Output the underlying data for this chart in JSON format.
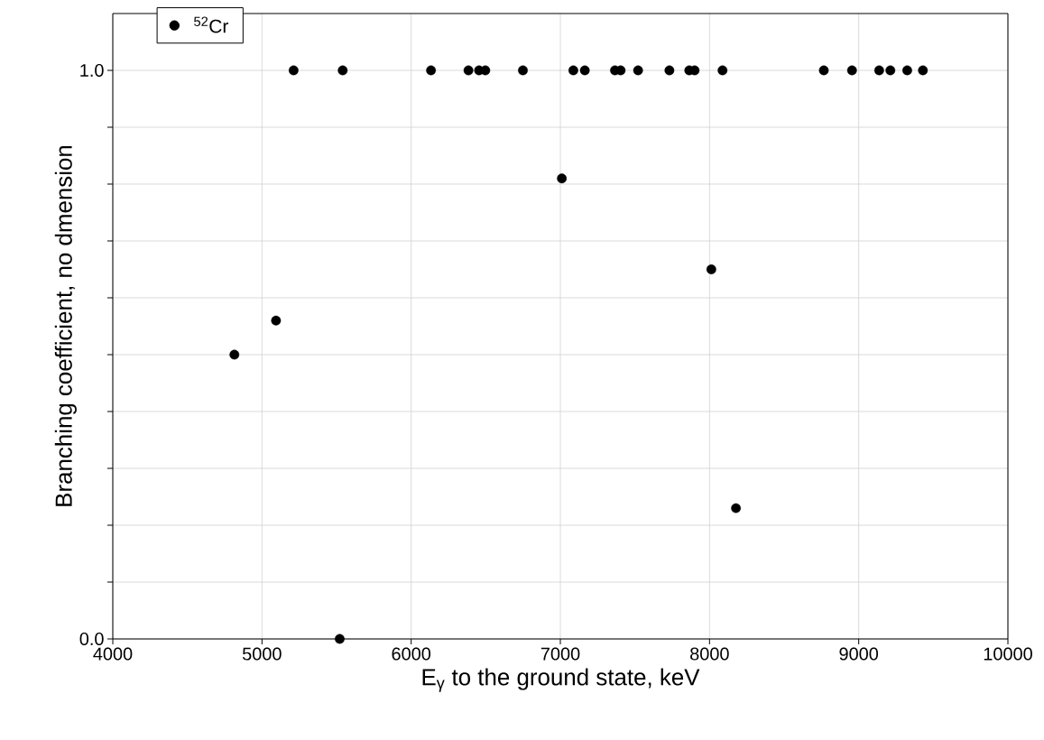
{
  "chart_data": {
    "type": "scatter",
    "xlabel": "E$_{γ}$ to the ground state, keV",
    "ylabel": "Branching coefficient, no dmension",
    "xlim": [
      4000,
      10000
    ],
    "xticks": [
      4000,
      5000,
      6000,
      7000,
      8000,
      9000,
      10000
    ],
    "ylim": [
      0,
      1.1
    ],
    "yticks": [
      {
        "value": 0,
        "label": "0.0"
      },
      {
        "value": 0.1,
        "label": null
      },
      {
        "value": 0.2,
        "label": null
      },
      {
        "value": 0.3,
        "label": null
      },
      {
        "value": 0.4,
        "label": null
      },
      {
        "value": 0.5,
        "label": null
      },
      {
        "value": 0.6,
        "label": null
      },
      {
        "value": 0.7,
        "label": null
      },
      {
        "value": 0.8,
        "label": null
      },
      {
        "value": 0.9,
        "label": null
      },
      {
        "value": 1.0,
        "label": "1.0"
      }
    ],
    "grid": true,
    "legend": "top left",
    "marker": "circle",
    "series": [
      {
        "name": "$^{52}$Cr",
        "color": "#000000",
        "x": [
          4815,
          5094,
          5212,
          5521,
          5541,
          6133,
          6384,
          6455,
          6497,
          6749,
          7010,
          7087,
          7164,
          7366,
          7404,
          7521,
          7731,
          7864,
          7900,
          8012,
          8087,
          8177,
          8766,
          8955,
          9137,
          9212,
          9325,
          9430
        ],
        "values": [
          0.5,
          0.56,
          1.0,
          0.0,
          1.0,
          1.0,
          1.0,
          1.0,
          1.0,
          1.0,
          0.81,
          1.0,
          1.0,
          1.0,
          1.0,
          1.0,
          1.0,
          1.0,
          1.0,
          0.65,
          1.0,
          0.23,
          1.0,
          1.0,
          1.0,
          1.0,
          1.0,
          1.0
        ]
      }
    ]
  }
}
